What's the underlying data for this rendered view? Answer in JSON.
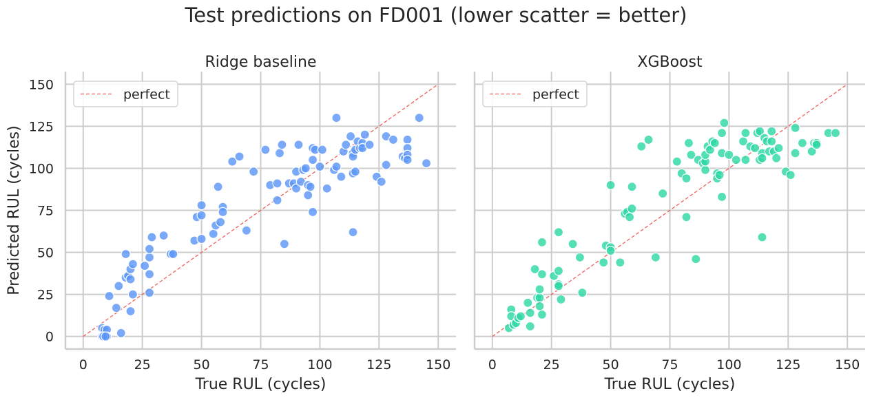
{
  "figure": {
    "suptitle": "Test predictions on FD001 (lower scatter = better)"
  },
  "chart_data": [
    {
      "type": "scatter",
      "title": "Ridge baseline",
      "xlabel": "True RUL (cycles)",
      "ylabel": "Predicted RUL (cycles)",
      "xlim": [
        -7.5,
        157.5
      ],
      "ylim": [
        -7.5,
        157.5
      ],
      "xticks": [
        0,
        25,
        50,
        75,
        100,
        125,
        150
      ],
      "yticks": [
        0,
        25,
        50,
        75,
        100,
        125,
        150
      ],
      "grid": true,
      "legend": {
        "placement": "top-left",
        "entries": [
          "perfect"
        ]
      },
      "colors": {
        "points": "#5B96F7",
        "reference": "#F0605A"
      },
      "reference_line": {
        "label": "perfect",
        "x": [
          0,
          150
        ],
        "y": [
          0,
          150
        ]
      },
      "series": [
        {
          "values": [
            [
              8,
              5
            ],
            [
              9,
              4
            ],
            [
              10,
              4
            ],
            [
              8,
              0
            ],
            [
              9,
              0
            ],
            [
              10,
              0
            ],
            [
              8.5,
              0
            ],
            [
              9.5,
              0
            ],
            [
              16,
              2
            ],
            [
              11,
              24
            ],
            [
              14,
              17
            ],
            [
              20,
              15
            ],
            [
              21,
              25
            ],
            [
              15,
              30
            ],
            [
              18,
              35
            ],
            [
              19,
              36
            ],
            [
              20,
              40
            ],
            [
              21,
              43
            ],
            [
              20,
              34
            ],
            [
              18,
              49
            ],
            [
              26,
              42
            ],
            [
              28,
              26
            ],
            [
              28,
              37
            ],
            [
              28,
              47
            ],
            [
              28,
              52
            ],
            [
              29,
              59
            ],
            [
              34,
              60
            ],
            [
              37,
              49
            ],
            [
              38,
              49
            ],
            [
              47,
              57
            ],
            [
              48,
              71
            ],
            [
              50,
              58
            ],
            [
              50,
              72
            ],
            [
              50,
              78
            ],
            [
              55,
              61
            ],
            [
              56,
              66
            ],
            [
              57,
              89
            ],
            [
              58,
              68
            ],
            [
              59,
              77
            ],
            [
              59,
              74
            ],
            [
              63,
              104
            ],
            [
              66,
              107
            ],
            [
              69,
              63
            ],
            [
              72,
              98
            ],
            [
              77,
              111
            ],
            [
              79,
              90
            ],
            [
              82,
              91
            ],
            [
              82,
              81
            ],
            [
              83,
              109
            ],
            [
              84,
              114
            ],
            [
              85,
              55
            ],
            [
              87,
              91
            ],
            [
              89,
              91
            ],
            [
              90,
              88
            ],
            [
              90,
              98
            ],
            [
              91,
              114
            ],
            [
              92,
              92
            ],
            [
              93,
              99
            ],
            [
              94,
              100
            ],
            [
              95,
              84
            ],
            [
              95,
              90
            ],
            [
              96,
              89
            ],
            [
              97,
              105
            ],
            [
              97,
              112
            ],
            [
              97,
              74
            ],
            [
              98,
              111
            ],
            [
              100,
              101
            ],
            [
              101,
              111
            ],
            [
              103,
              88
            ],
            [
              106,
              99
            ],
            [
              107,
              130
            ],
            [
              107,
              101
            ],
            [
              109,
              95
            ],
            [
              110,
              110
            ],
            [
              111,
              114
            ],
            [
              113,
              119
            ],
            [
              114,
              97
            ],
            [
              114,
              109
            ],
            [
              114,
              62
            ],
            [
              114,
              107
            ],
            [
              115,
              111
            ],
            [
              115,
              98
            ],
            [
              116,
              116
            ],
            [
              117,
              112
            ],
            [
              118,
              115
            ],
            [
              118,
              112
            ],
            [
              119,
              120
            ],
            [
              121,
              114
            ],
            [
              124,
              95
            ],
            [
              126,
              92
            ],
            [
              128,
              102
            ],
            [
              128,
              119
            ],
            [
              131,
              117
            ],
            [
              135,
              107
            ],
            [
              136,
              106
            ],
            [
              137,
              117
            ],
            [
              137,
              112
            ],
            [
              137,
              108
            ],
            [
              137,
              105
            ],
            [
              142,
              130
            ],
            [
              145,
              103
            ]
          ]
        }
      ]
    },
    {
      "type": "scatter",
      "title": "XGBoost",
      "xlabel": "True RUL (cycles)",
      "ylabel": "",
      "xlim": [
        -7.5,
        157.5
      ],
      "ylim": [
        -7.5,
        157.5
      ],
      "xticks": [
        0,
        25,
        50,
        75,
        100,
        125,
        150
      ],
      "yticks": [
        0,
        25,
        50,
        75,
        100,
        125,
        150
      ],
      "grid": true,
      "legend": {
        "placement": "top-left",
        "entries": [
          "perfect"
        ]
      },
      "colors": {
        "points": "#2ED8A5",
        "reference": "#F0605A"
      },
      "reference_line": {
        "label": "perfect",
        "x": [
          0,
          150
        ],
        "y": [
          0,
          150
        ]
      },
      "series": [
        {
          "values": [
            [
              7,
              5
            ],
            [
              8,
              16
            ],
            [
              8,
              12
            ],
            [
              9,
              7
            ],
            [
              10,
              8
            ],
            [
              11,
              11
            ],
            [
              12,
              12
            ],
            [
              15,
              20
            ],
            [
              16,
              6
            ],
            [
              16,
              14
            ],
            [
              18,
              40
            ],
            [
              19,
              23
            ],
            [
              20,
              23
            ],
            [
              20,
              18
            ],
            [
              20,
              28
            ],
            [
              21,
              13
            ],
            [
              21,
              56
            ],
            [
              21,
              37
            ],
            [
              26,
              36
            ],
            [
              28,
              39
            ],
            [
              28,
              31
            ],
            [
              28,
              62
            ],
            [
              28,
              30
            ],
            [
              29,
              22
            ],
            [
              34,
              55
            ],
            [
              37,
              47
            ],
            [
              38,
              26
            ],
            [
              47,
              44
            ],
            [
              48,
              54
            ],
            [
              50,
              53
            ],
            [
              50,
              51
            ],
            [
              50,
              90
            ],
            [
              54,
              44
            ],
            [
              56,
              73
            ],
            [
              57,
              74
            ],
            [
              58,
              71
            ],
            [
              59,
              89
            ],
            [
              59,
              76
            ],
            [
              63,
              113
            ],
            [
              66,
              117
            ],
            [
              69,
              47
            ],
            [
              72,
              85
            ],
            [
              78,
              104
            ],
            [
              80,
              97
            ],
            [
              82,
              71
            ],
            [
              82,
              94
            ],
            [
              83,
              115
            ],
            [
              84,
              108
            ],
            [
              86,
              46
            ],
            [
              87,
              105
            ],
            [
              89,
              103
            ],
            [
              90,
              99
            ],
            [
              90,
              104
            ],
            [
              90,
              108
            ],
            [
              91,
              113
            ],
            [
              92,
              111
            ],
            [
              93,
              116
            ],
            [
              94,
              115
            ],
            [
              95,
              97
            ],
            [
              95,
              94
            ],
            [
              96,
              96
            ],
            [
              97,
              121
            ],
            [
              97,
              109
            ],
            [
              97,
              83
            ],
            [
              98,
              127
            ],
            [
              100,
              108
            ],
            [
              103,
              105
            ],
            [
              106,
              116
            ],
            [
              107,
              121
            ],
            [
              107,
              105
            ],
            [
              109,
              113
            ],
            [
              111,
              112
            ],
            [
              112,
              121
            ],
            [
              113,
              105
            ],
            [
              114,
              59
            ],
            [
              114,
              109
            ],
            [
              113,
              122
            ],
            [
              114,
              106
            ],
            [
              115,
              118
            ],
            [
              116,
              116
            ],
            [
              117,
              110
            ],
            [
              118,
              116
            ],
            [
              118,
              122
            ],
            [
              119,
              110
            ],
            [
              120,
              106
            ],
            [
              121,
              112
            ],
            [
              124,
              98
            ],
            [
              126,
              96
            ],
            [
              128,
              109
            ],
            [
              128,
              124
            ],
            [
              131,
              115
            ],
            [
              135,
              110
            ],
            [
              136,
              115
            ],
            [
              137,
              115
            ],
            [
              137,
              114
            ],
            [
              142,
              121
            ],
            [
              145,
              121
            ]
          ]
        }
      ]
    }
  ]
}
